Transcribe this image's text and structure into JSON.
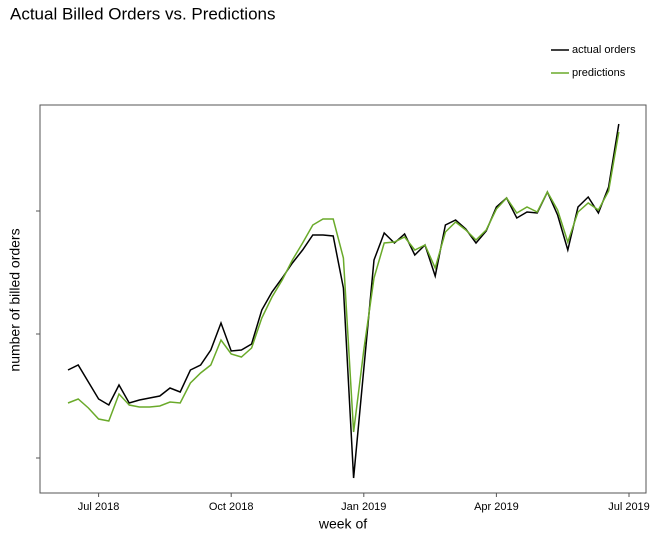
{
  "chart_data": {
    "type": "line",
    "title": "Actual Billed Orders vs. Predictions",
    "x_label": "week of",
    "y_label": "number of billed orders",
    "categories": [
      null,
      null,
      null,
      "Jul 2018",
      null,
      null,
      null,
      null,
      null,
      null,
      null,
      null,
      null,
      null,
      null,
      null,
      "Oct 2018",
      null,
      null,
      null,
      null,
      null,
      null,
      null,
      null,
      null,
      null,
      null,
      null,
      "Jan 2019",
      null,
      null,
      null,
      null,
      null,
      null,
      null,
      null,
      null,
      null,
      null,
      null,
      "Apr 2019",
      null,
      null,
      null,
      null,
      null,
      null,
      null,
      null,
      null,
      null,
      null,
      null,
      "Jul 2019"
    ],
    "series": [
      {
        "name": "actual orders",
        "color": "#000000",
        "values": [
          123,
          128,
          111,
          94,
          88,
          108,
          90,
          93,
          95,
          97,
          105,
          101,
          123,
          128,
          143,
          170,
          142,
          143,
          149,
          183,
          201,
          215,
          230,
          243,
          258,
          258,
          257,
          205,
          15,
          124,
          233,
          260,
          250,
          259,
          238,
          248,
          217,
          268,
          273,
          264,
          250,
          262,
          286,
          295,
          275,
          281,
          280,
          301,
          278,
          243,
          286,
          296,
          280,
          306,
          369,
          null
        ]
      },
      {
        "name": "predictions",
        "color": "#6aaa2a",
        "values": [
          90,
          94,
          85,
          74,
          72,
          99,
          88,
          86,
          86,
          87,
          91,
          90,
          110,
          120,
          128,
          153,
          139,
          136,
          145,
          175,
          196,
          213,
          233,
          250,
          268,
          274,
          274,
          235,
          61,
          143,
          215,
          250,
          251,
          256,
          243,
          248,
          225,
          261,
          271,
          263,
          253,
          263,
          284,
          295,
          280,
          286,
          281,
          301,
          283,
          251,
          281,
          290,
          283,
          302,
          361,
          null
        ]
      }
    ],
    "ylim": [
      0,
      388
    ],
    "yticks": [
      35,
      159,
      282
    ],
    "legend": "top-right"
  }
}
